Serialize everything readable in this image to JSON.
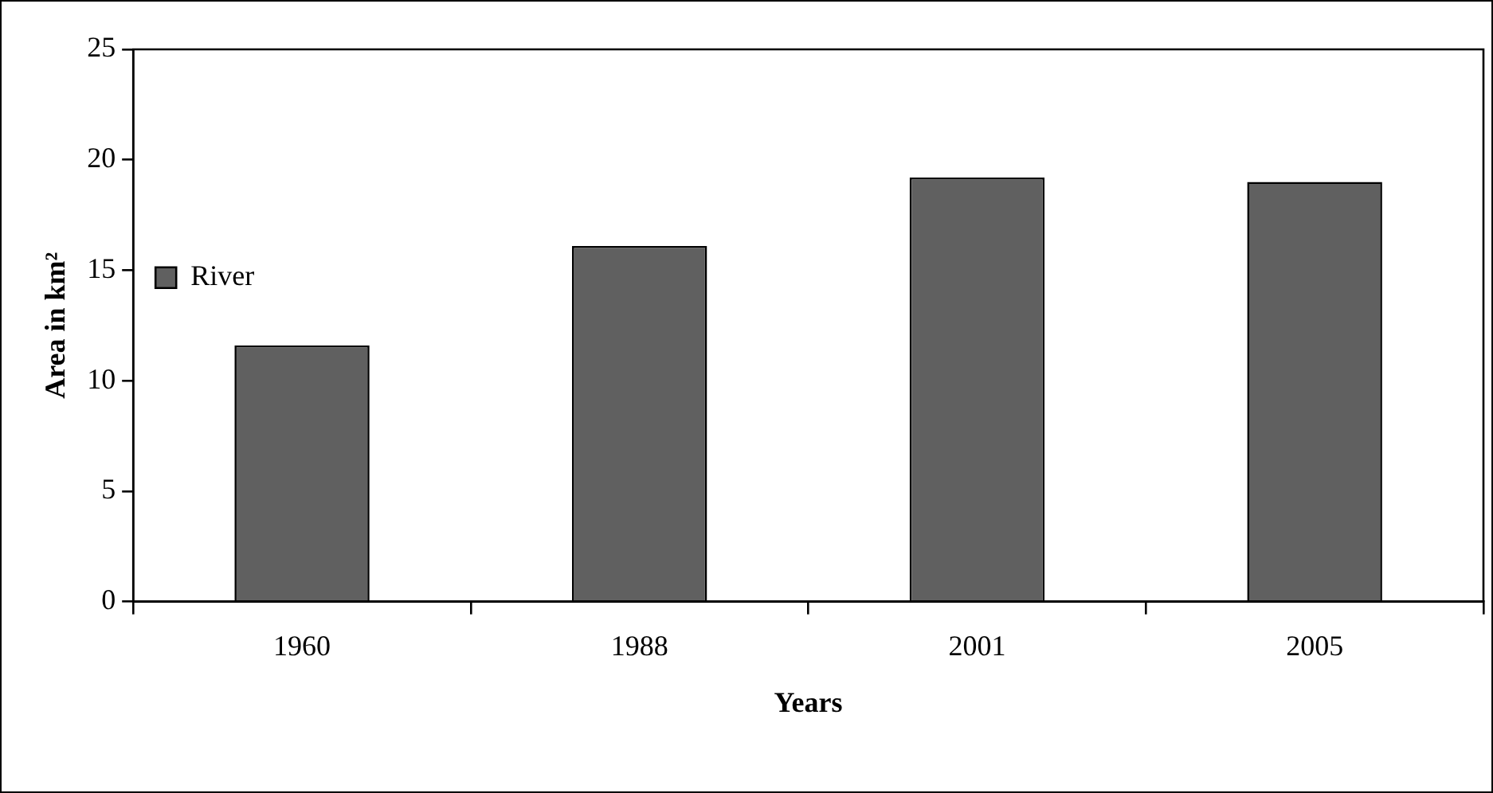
{
  "chart_data": {
    "type": "bar",
    "xlabel": "Years",
    "ylabel": "Area in km²",
    "categories": [
      "1960",
      "1988",
      "2001",
      "2005"
    ],
    "series": [
      {
        "name": "River",
        "color": "#606060",
        "values": [
          11.6,
          16.1,
          19.2,
          19.0
        ]
      }
    ],
    "ylim": [
      0,
      25
    ],
    "yticks": [
      0,
      5,
      10,
      15,
      20,
      25
    ],
    "grid": false,
    "legend": "top"
  }
}
